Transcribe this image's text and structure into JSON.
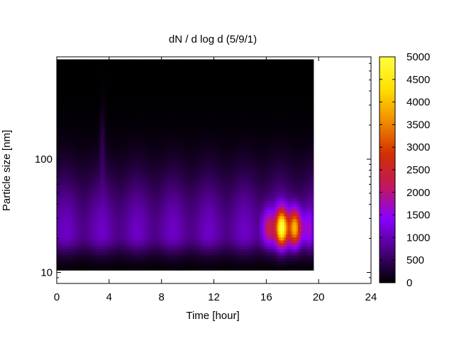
{
  "chart_data": {
    "type": "heatmap",
    "title": "dN / d log d (5/9/1)",
    "xlabel": "Time [hour]",
    "ylabel": "Particle size [nm]",
    "xlim": [
      0,
      24
    ],
    "ylim": [
      8,
      800
    ],
    "yscale": "log",
    "x_ticks": [
      "0",
      "4",
      "8",
      "12",
      "16",
      "20",
      "24"
    ],
    "x_tick_values": [
      0,
      4,
      8,
      12,
      16,
      20,
      24
    ],
    "y_ticks": [
      "10",
      "100"
    ],
    "y_tick_values": [
      10,
      100
    ],
    "colorbar": {
      "range": [
        0,
        5000
      ],
      "ticks": [
        "0",
        "500",
        "1000",
        "1500",
        "2000",
        "2500",
        "3000",
        "3500",
        "4000",
        "4500",
        "5000"
      ],
      "tick_values": [
        0,
        500,
        1000,
        1500,
        2000,
        2500,
        3000,
        3500,
        4000,
        4500,
        5000
      ],
      "colors": [
        "#000000",
        "#4b0082",
        "#8b00ff",
        "#c2185b",
        "#d32f00",
        "#f08c00",
        "#ffe000",
        "#ffff40"
      ]
    },
    "data_extent": {
      "time": [
        0,
        19.6
      ],
      "size": [
        10.5,
        760
      ]
    },
    "features": [
      {
        "type": "band",
        "time": [
          0,
          19.6
        ],
        "size_peak": 22,
        "level": 1100
      },
      {
        "type": "hotspot",
        "time": [
          15.8,
          19.2
        ],
        "size_peak": 25,
        "level": 4300
      },
      {
        "type": "streak",
        "time": 3.5,
        "size_peak": 130,
        "level": 1000
      }
    ]
  }
}
